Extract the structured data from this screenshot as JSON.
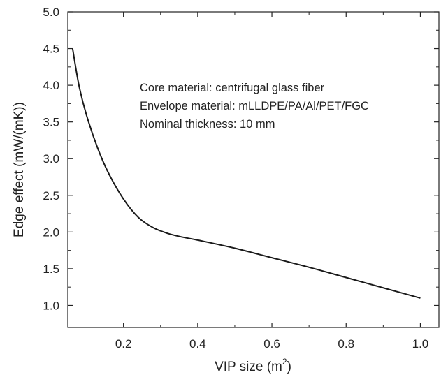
{
  "chart_data": {
    "type": "line",
    "title": "",
    "xlabel": "VIP size (m",
    "xlabel_superscript": "2",
    "xlabel_suffix": ")",
    "ylabel": "Edge effect (mW/(mK))",
    "xlim": [
      0.05,
      1.05
    ],
    "ylim": [
      0.7,
      5.0
    ],
    "xticks": [
      0.2,
      0.4,
      0.6,
      0.8,
      1.0
    ],
    "xtick_labels": [
      "0.2",
      "0.4",
      "0.6",
      "0.8",
      "1.0"
    ],
    "yticks": [
      1.0,
      1.5,
      2.0,
      2.5,
      3.0,
      3.5,
      4.0,
      4.5,
      5.0
    ],
    "ytick_labels": [
      "1.0",
      "1.5",
      "2.0",
      "2.5",
      "3.0",
      "3.5",
      "4.0",
      "4.5",
      "5.0"
    ],
    "grid": false,
    "legend": "none",
    "annotations": [
      "Core material: centrifugal glass fiber",
      "Envelope material: mLLDPE/PA/Al/PET/FGC",
      "Nominal thickness: 10 mm"
    ],
    "series": [
      {
        "color": "#1a1a1a",
        "x": [
          0.063,
          0.08,
          0.1,
          0.13,
          0.16,
          0.2,
          0.24,
          0.28,
          0.32,
          0.36,
          0.4,
          0.5,
          0.6,
          0.7,
          0.8,
          0.9,
          1.0
        ],
        "y": [
          4.5,
          4.0,
          3.6,
          3.15,
          2.8,
          2.45,
          2.2,
          2.06,
          1.98,
          1.93,
          1.89,
          1.78,
          1.65,
          1.52,
          1.38,
          1.24,
          1.1
        ]
      }
    ]
  }
}
